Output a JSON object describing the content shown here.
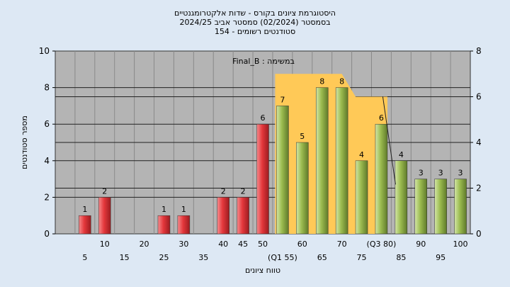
{
  "chart_data": {
    "type": "bar",
    "title_lines": [
      "היסטוגרמת ציונים בקורס - שדות אלקטרומגנטיים",
      "בסמסטר   (02/2024)  סמסטר אביב 2024/25",
      "סטודנטים רשומים - 154"
    ],
    "xlabel": "טווח ציונים",
    "ylabel": "מספר סטודנטים",
    "annotation": "במשימה : Final_B",
    "ylim": [
      0,
      10
    ],
    "y_ticks": [
      0,
      2,
      4,
      6,
      8,
      10
    ],
    "y2lim": [
      0,
      8
    ],
    "y2_ticks": [
      0,
      2,
      4,
      6,
      8
    ],
    "x_labels_upper": [
      "10",
      "20",
      "30",
      "40",
      "45",
      "50",
      "(Q1 55)",
      "60",
      "65",
      "70",
      "75",
      "(Q3 80)",
      "85",
      "90",
      "95",
      "100"
    ],
    "x_labels_lower": [
      "5",
      "15",
      "25",
      "35"
    ],
    "bars": [
      {
        "x": 5,
        "value": 1,
        "label": "1",
        "color": "red"
      },
      {
        "x": 10,
        "value": 2,
        "label": "2",
        "color": "red"
      },
      {
        "x": 25,
        "value": 1,
        "label": "1",
        "color": "red"
      },
      {
        "x": 30,
        "value": 1,
        "label": "1",
        "color": "red"
      },
      {
        "x": 40,
        "value": 2,
        "label": "2",
        "color": "red"
      },
      {
        "x": 45,
        "value": 2,
        "label": "2",
        "color": "red"
      },
      {
        "x": 50,
        "value": 6,
        "label": "6",
        "color": "red"
      },
      {
        "x": 55,
        "value": 7,
        "label": "7",
        "color": "green"
      },
      {
        "x": 60,
        "value": 5,
        "label": "5",
        "color": "green"
      },
      {
        "x": 65,
        "value": 8,
        "label": "8",
        "color": "green"
      },
      {
        "x": 70,
        "value": 8,
        "label": "8",
        "color": "green"
      },
      {
        "x": 75,
        "value": 4,
        "label": "4",
        "color": "green"
      },
      {
        "x": 80,
        "value": 6,
        "label": "6",
        "color": "green"
      },
      {
        "x": 85,
        "value": 4,
        "label": "4",
        "color": "green"
      },
      {
        "x": 90,
        "value": 3,
        "label": "3",
        "color": "green"
      },
      {
        "x": 95,
        "value": 3,
        "label": "3",
        "color": "green"
      },
      {
        "x": 100,
        "value": 3,
        "label": "3",
        "color": "green"
      }
    ],
    "band": [
      {
        "x": 55,
        "y2": 7
      },
      {
        "x": 70,
        "y2": 7
      },
      {
        "x": 75,
        "y2": 6
      },
      {
        "x": 80,
        "y2": 6
      }
    ],
    "colors": {
      "background": "#dde8f4",
      "plot": "#b4b4b4",
      "band": "#ffc957",
      "red": "#e0353a",
      "green": "#9bbb4f"
    },
    "grid": true
  }
}
